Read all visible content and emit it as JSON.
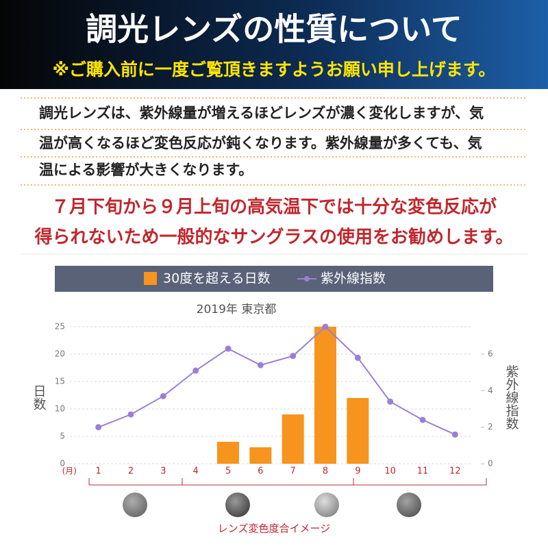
{
  "header": {
    "title": "調光レンズの性質について",
    "subtitle": "※ご購入前に一度ご覧頂きますようお願い申し上げます。"
  },
  "description": {
    "lines": [
      "調光レンズは、紫外線量が増えるほどレンズが濃く変化しますが、気",
      "温が高くなるほど変色反応が鈍くなります。紫外線量が多くても、気",
      "温による影響が大きくなります。"
    ]
  },
  "warning": {
    "lines": [
      "７月下旬から９月上旬の高気温下では十分な変色反応が",
      "得られないため一般的なサングラスの使用をお勧めします。"
    ]
  },
  "chart_data": {
    "type": "bar-line",
    "title": "2019年 東京都",
    "x_label": "(月)",
    "y_label": "日数",
    "y2_label": "紫外線指数",
    "categories": [
      "1",
      "2",
      "3",
      "4",
      "5",
      "6",
      "7",
      "8",
      "9",
      "10",
      "11",
      "12"
    ],
    "series": [
      {
        "name": "30度を超える日数",
        "type": "bar",
        "color": "#f7941d",
        "values": [
          0,
          0,
          0,
          0,
          4,
          3,
          9,
          25,
          12,
          0,
          0,
          0
        ]
      },
      {
        "name": "紫外線指数",
        "type": "line",
        "axis": "y2",
        "color": "#9b7fd6",
        "values": [
          2.0,
          2.7,
          3.7,
          5.1,
          6.3,
          5.4,
          5.9,
          7.5,
          5.8,
          3.4,
          2.4,
          1.6
        ]
      }
    ],
    "ylim": [
      0,
      25
    ],
    "yticks": [
      0,
      5,
      10,
      15,
      20,
      25
    ],
    "y2lim": [
      0,
      7.5
    ],
    "y2ticks": [
      0,
      2,
      4,
      6
    ],
    "grid": true,
    "footnote": "レンズ変色度合イメージ"
  }
}
